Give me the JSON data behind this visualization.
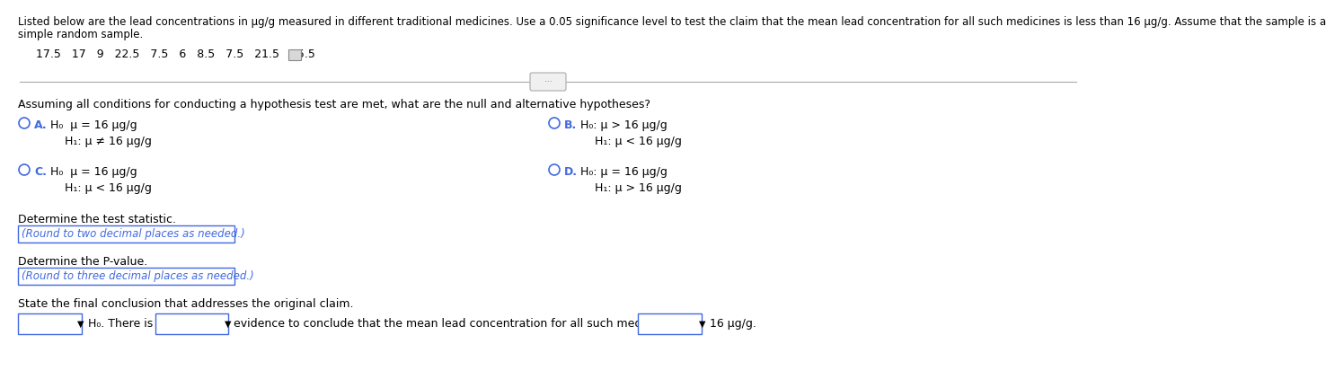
{
  "bg_color": "#ffffff",
  "text_color": "#000000",
  "blue_color": "#4169E1",
  "header_line1": "Listed below are the lead concentrations in μg/g measured in different traditional medicines. Use a 0.05 significance level to test the claim that the mean lead concentration for all such medicines is less than 16 μg/g. Assume that the sample is a",
  "header_line2": "simple random sample.",
  "data_values": "17.5   17   9   22.5   7.5   6   8.5   7.5   21.5   15.5",
  "question_text": "Assuming all conditions for conducting a hypothesis test are met, what are the null and alternative hypotheses?",
  "option_A_label": "A.",
  "option_A_H0": "H₀  μ = 16 μg/g",
  "option_A_H1": "H₁: μ ≠ 16 μg/g",
  "option_B_label": "B.",
  "option_B_H0": "H₀: μ > 16 μg/g",
  "option_B_H1": "H₁: μ < 16 μg/g",
  "option_C_label": "C.",
  "option_C_H0": "H₀  μ = 16 μg/g",
  "option_C_H1": "H₁: μ < 16 μg/g",
  "option_D_label": "D.",
  "option_D_H0": "H₀: μ = 16 μg/g",
  "option_D_H1": "H₁: μ > 16 μg/g",
  "test_stat_label": "Determine the test statistic.",
  "test_stat_hint": "(Round to two decimal places as needed.)",
  "pvalue_label": "Determine the P-value.",
  "pvalue_hint": "(Round to three decimal places as needed.)",
  "conclusion_label": "State the final conclusion that addresses the original claim.",
  "conclusion_text": "evidence to conclude that the mean lead concentration for all such medicines is",
  "conclusion_end": "16 μg/g.",
  "H0_label": "H₀. There is",
  "fs_header": 8.5,
  "fs_body": 9.0,
  "fs_hint": 8.5,
  "fs_small": 7.5
}
